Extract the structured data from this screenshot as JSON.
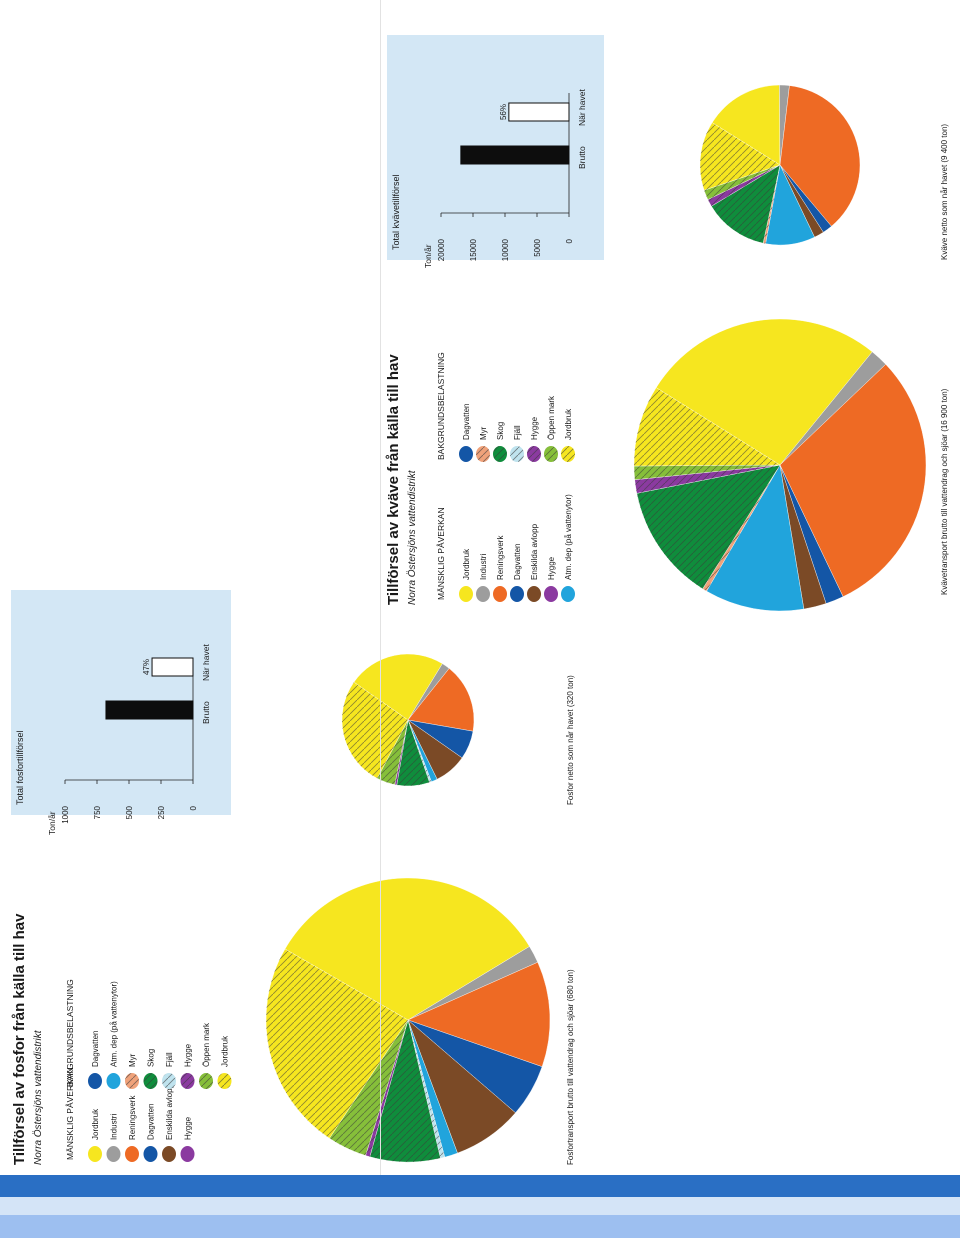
{
  "colors": {
    "jordbruk": "#f6e61f",
    "industri": "#9d9d9d",
    "reningsverk": "#ee6a24",
    "dagvatten": "#1456a6",
    "enskilda_avlopp": "#7b4a26",
    "hygge": "#8b3aa0",
    "atm_dep": "#21a4dc",
    "myr": "#f0a27a",
    "skog": "#0f8d3c",
    "fjall": "#bfe3ee",
    "oppen_mark": "#86bf3a",
    "panel_bg": "#d3e7f5",
    "footer_blue": "#2a6fc4"
  },
  "phosphorus": {
    "title": "Tillförsel av fosfor från källa till hav",
    "subtitle": "Norra Östersjöns vattendistrikt",
    "legend": {
      "human_header": "MÄNSKLIG PÅVERKAN",
      "human_items": [
        "Jordbruk",
        "Industri",
        "Reningsverk",
        "Dagvatten",
        "Enskilda avlopp",
        "Hygge"
      ],
      "background_header": "BAKGRUNDSBELASTNING",
      "background_items": [
        "Dagvatten",
        "Atm. dep (på vattenytor)",
        "Myr",
        "Skog",
        "Fjäll",
        "Hygge",
        "Öppen mark",
        "Jordbruk"
      ]
    },
    "gross_caption": "Fosfortransport brutto till vattendrag och sjöar (680 ton)",
    "net_caption": "Fosfor netto som når havet (320 ton)"
  },
  "nitrogen": {
    "title": "Tillförsel av kväve från källa till hav",
    "subtitle": "Norra Östersjöns vattendistrikt",
    "legend": {
      "human_header": "MÄNSKLIG PÅVERKAN",
      "human_items": [
        "Jordbruk",
        "Industri",
        "Reningsverk",
        "Dagvatten",
        "Enskilda avlopp",
        "Hygge",
        "Atm. dep (på vattenytor)"
      ],
      "background_header": "BAKGRUNDSBELASTNING",
      "background_items": [
        "Dagvatten",
        "Myr",
        "Skog",
        "Fjäll",
        "Hygge",
        "Öppen mark",
        "Jordbruk"
      ]
    },
    "gross_caption": "Kvävetransport brutto till vattendrag och sjöar (16 900 ton)",
    "net_caption": "Kväve netto som når havet (9 400 ton)"
  },
  "chart_data": [
    {
      "id": "p-bar",
      "type": "bar",
      "title": "Total fosfortillförsel",
      "ylabel": "Ton/år",
      "categories": [
        "Brutto",
        "När havet"
      ],
      "values": [
        680,
        320
      ],
      "bar_labels": [
        "",
        "47%"
      ],
      "ylim": [
        0,
        1000
      ],
      "yticks": [
        0,
        250,
        500,
        750,
        1000
      ],
      "grid": false
    },
    {
      "id": "n-bar",
      "type": "bar",
      "title": "Total kvävetillförsel",
      "ylabel": "Ton/år",
      "categories": [
        "Brutto",
        "När havet"
      ],
      "values": [
        16900,
        9400
      ],
      "bar_labels": [
        "",
        "56%"
      ],
      "ylim": [
        0,
        20000
      ],
      "yticks": [
        0,
        5000,
        10000,
        15000,
        20000
      ],
      "grid": false
    },
    {
      "id": "p-gross",
      "type": "pie",
      "title": "Fosfortransport brutto till vattendrag och sjöar (680 ton)",
      "slices": [
        {
          "category": "Jordbruk (mänsklig påverkan)",
          "value": 33,
          "color": "#f6e61f"
        },
        {
          "category": "Industri",
          "value": 2,
          "color": "#9d9d9d"
        },
        {
          "category": "Reningsverk",
          "value": 12,
          "color": "#ee6a24"
        },
        {
          "category": "Dagvatten",
          "value": 6,
          "color": "#1456a6"
        },
        {
          "category": "Enskilda avlopp",
          "value": 8,
          "color": "#7b4a26"
        },
        {
          "category": "Atm. dep (på vattenytor)",
          "value": 1.5,
          "color": "#21a4dc"
        },
        {
          "category": "Fjäll",
          "value": 0.5,
          "color": "#bfe3ee"
        },
        {
          "category": "Skog",
          "value": 8,
          "color": "#0f8d3c"
        },
        {
          "category": "Hygge",
          "value": 0.5,
          "color": "#8b3aa0"
        },
        {
          "category": "Öppen mark",
          "value": 4.5,
          "color": "#86bf3a"
        },
        {
          "category": "Jordbruk (bakgrundsbelastning)",
          "value": 24,
          "color": "#f6e61f"
        }
      ]
    },
    {
      "id": "p-net",
      "type": "pie",
      "title": "Fosfor netto som når havet (320 ton)",
      "slices": [
        {
          "category": "Jordbruk (mänsklig påverkan)",
          "value": 24,
          "color": "#f6e61f"
        },
        {
          "category": "Industri",
          "value": 2,
          "color": "#9d9d9d"
        },
        {
          "category": "Reningsverk",
          "value": 17,
          "color": "#ee6a24"
        },
        {
          "category": "Dagvatten",
          "value": 7,
          "color": "#1456a6"
        },
        {
          "category": "Enskilda avlopp",
          "value": 8,
          "color": "#7b4a26"
        },
        {
          "category": "Atm. dep (på vattenytor)",
          "value": 1.5,
          "color": "#21a4dc"
        },
        {
          "category": "Fjäll",
          "value": 0.5,
          "color": "#bfe3ee"
        },
        {
          "category": "Skog",
          "value": 8,
          "color": "#0f8d3c"
        },
        {
          "category": "Hygge",
          "value": 0.5,
          "color": "#8b3aa0"
        },
        {
          "category": "Öppen mark",
          "value": 4.5,
          "color": "#86bf3a"
        },
        {
          "category": "Jordbruk (bakgrundsbelastning)",
          "value": 27,
          "color": "#f6e61f"
        }
      ]
    },
    {
      "id": "n-gross",
      "type": "pie",
      "title": "Kvävetransport brutto till vattendrag och sjöar (16 900 ton)",
      "slices": [
        {
          "category": "Jordbruk (mänsklig påverkan)",
          "value": 27,
          "color": "#f6e61f"
        },
        {
          "category": "Industri",
          "value": 2,
          "color": "#9d9d9d"
        },
        {
          "category": "Reningsverk",
          "value": 30,
          "color": "#ee6a24"
        },
        {
          "category": "Dagvatten",
          "value": 2,
          "color": "#1456a6"
        },
        {
          "category": "Enskilda avlopp",
          "value": 2.5,
          "color": "#7b4a26"
        },
        {
          "category": "Atm. dep (på vattenytor)",
          "value": 11,
          "color": "#21a4dc"
        },
        {
          "category": "Myr",
          "value": 0.5,
          "color": "#f0a27a"
        },
        {
          "category": "Skog",
          "value": 13,
          "color": "#0f8d3c"
        },
        {
          "category": "Hygge",
          "value": 1.5,
          "color": "#8b3aa0"
        },
        {
          "category": "Öppen mark",
          "value": 1.5,
          "color": "#86bf3a"
        },
        {
          "category": "Jordbruk (bakgrundsbelastning)",
          "value": 9,
          "color": "#f6e61f"
        }
      ]
    },
    {
      "id": "n-net",
      "type": "pie",
      "title": "Kväve netto som når havet (9 400 ton)",
      "slices": [
        {
          "category": "Jordbruk (mänsklig påverkan)",
          "value": 16,
          "color": "#f6e61f"
        },
        {
          "category": "Industri",
          "value": 2,
          "color": "#9d9d9d"
        },
        {
          "category": "Reningsverk",
          "value": 37,
          "color": "#ee6a24"
        },
        {
          "category": "Dagvatten",
          "value": 2,
          "color": "#1456a6"
        },
        {
          "category": "Enskilda avlopp",
          "value": 2,
          "color": "#7b4a26"
        },
        {
          "category": "Atm. dep (på vattenytor)",
          "value": 10,
          "color": "#21a4dc"
        },
        {
          "category": "Myr",
          "value": 0.5,
          "color": "#f0a27a"
        },
        {
          "category": "Skog",
          "value": 13,
          "color": "#0f8d3c"
        },
        {
          "category": "Hygge",
          "value": 1.5,
          "color": "#8b3aa0"
        },
        {
          "category": "Öppen mark",
          "value": 2,
          "color": "#86bf3a"
        },
        {
          "category": "Jordbruk (bakgrundsbelastning)",
          "value": 14,
          "color": "#f6e61f"
        }
      ]
    }
  ]
}
